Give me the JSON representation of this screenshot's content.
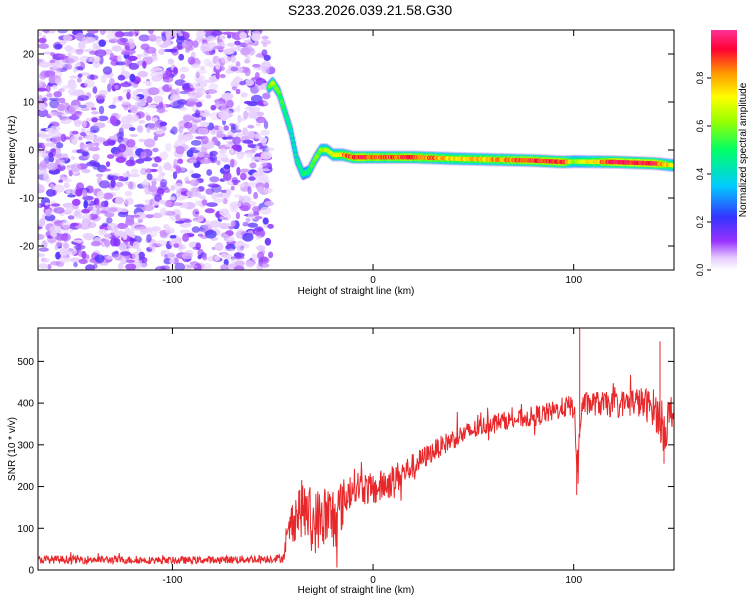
{
  "title": "S233.2026.039.21.58.G30",
  "chart_data": [
    {
      "type": "heatmap",
      "title": "S233.2026.039.21.58.G30",
      "xlabel": "Height of straight line (km)",
      "ylabel": "Frequency (Hz)",
      "xlim": [
        -167,
        150
      ],
      "ylim": [
        -25,
        25
      ],
      "x_ticks": [
        -100,
        0,
        100
      ],
      "y_ticks": [
        -20,
        -10,
        0,
        10,
        20
      ],
      "noise_region_x": [
        -167,
        -51
      ],
      "ridge": {
        "x": [
          -52,
          -50,
          -47,
          -44,
          -41,
          -38,
          -35,
          -32,
          -29,
          -26,
          -23,
          -20,
          -15,
          -10,
          -5,
          0,
          20,
          40,
          60,
          80,
          95,
          100,
          120,
          140,
          150
        ],
        "freq": [
          13,
          14,
          12,
          8,
          4,
          -2,
          -5,
          -4.5,
          -2,
          0,
          0,
          -1,
          -1,
          -1.5,
          -1.5,
          -1.5,
          -1.5,
          -1.8,
          -2,
          -2.2,
          -2.5,
          -2.4,
          -2.5,
          -2.8,
          -3.2
        ],
        "amplitude": [
          0.4,
          0.55,
          0.45,
          0.35,
          0.3,
          0.3,
          0.35,
          0.4,
          0.45,
          0.5,
          0.55,
          0.6,
          0.75,
          0.85,
          0.9,
          0.8,
          0.85,
          0.7,
          0.75,
          0.85,
          0.9,
          0.5,
          0.9,
          0.95,
          0.6
        ]
      },
      "colorbar": {
        "label": "Normalized spectral amplitude",
        "range": [
          0,
          1
        ],
        "ticks": [
          "0.0",
          "0.2",
          "0.4",
          "0.6",
          "0.8"
        ]
      }
    },
    {
      "type": "line",
      "xlabel": "Height of straight line (km)",
      "ylabel": "SNR (10 * v/v)",
      "xlim": [
        -167,
        150
      ],
      "ylim": [
        0,
        580
      ],
      "x_ticks": [
        -100,
        0,
        100
      ],
      "y_ticks": [
        0,
        100,
        200,
        300,
        400,
        500
      ],
      "series": [
        {
          "name": "SNR",
          "color": "#e8272a",
          "x": [
            -167,
            -140,
            -120,
            -100,
            -80,
            -60,
            -45,
            -40,
            -35,
            -30,
            -25,
            -20,
            -15,
            -10,
            0,
            10,
            20,
            30,
            40,
            50,
            60,
            70,
            80,
            90,
            95,
            100,
            102,
            104,
            110,
            120,
            130,
            140,
            145,
            150
          ],
          "values": [
            25,
            25,
            24,
            23,
            24,
            26,
            28,
            125,
            150,
            110,
            130,
            120,
            160,
            205,
            190,
            215,
            250,
            285,
            315,
            335,
            355,
            360,
            368,
            380,
            390,
            392,
            240,
            395,
            400,
            395,
            405,
            390,
            340,
            385
          ],
          "spread": [
            10,
            10,
            9,
            9,
            9,
            10,
            10,
            60,
            70,
            75,
            80,
            90,
            60,
            40,
            40,
            40,
            30,
            25,
            25,
            25,
            22,
            22,
            25,
            25,
            25,
            30,
            60,
            30,
            30,
            30,
            35,
            45,
            60,
            55
          ]
        }
      ],
      "spikes": [
        {
          "x": 103,
          "value": 580
        },
        {
          "x": 101.5,
          "value": 180
        },
        {
          "x": 143,
          "value": 548
        },
        {
          "x": 145,
          "value": 255
        }
      ]
    }
  ]
}
